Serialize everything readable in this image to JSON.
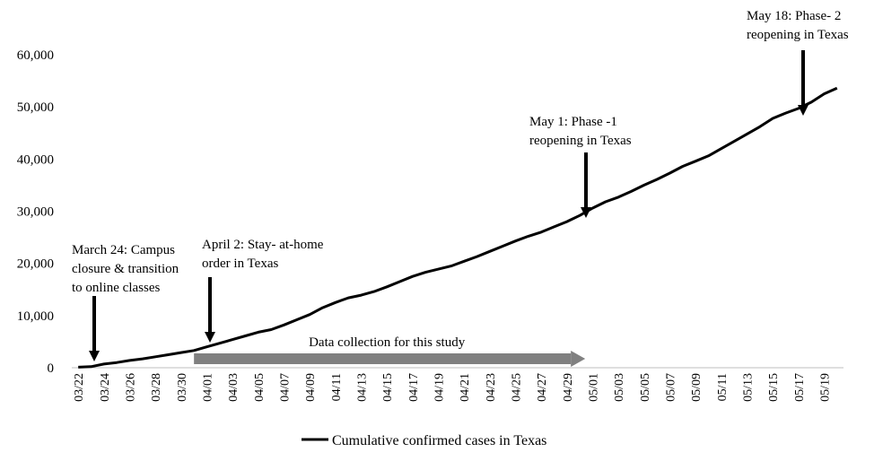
{
  "chart_data": {
    "type": "line",
    "title": "",
    "xlabel": "",
    "ylabel": "",
    "ylim": [
      0,
      60000
    ],
    "yticks": [
      "0",
      "10,000",
      "20,000",
      "30,000",
      "40,000",
      "50,000",
      "60,000"
    ],
    "ytick_values": [
      0,
      10000,
      20000,
      30000,
      40000,
      50000,
      60000
    ],
    "x": [
      "03/22",
      "03/23",
      "03/24",
      "03/25",
      "03/26",
      "03/27",
      "03/28",
      "03/29",
      "03/30",
      "03/31",
      "04/01",
      "04/02",
      "04/03",
      "04/04",
      "04/05",
      "04/06",
      "04/07",
      "04/08",
      "04/09",
      "04/10",
      "04/11",
      "04/12",
      "04/13",
      "04/14",
      "04/15",
      "04/16",
      "04/17",
      "04/18",
      "04/19",
      "04/20",
      "04/21",
      "04/22",
      "04/23",
      "04/24",
      "04/25",
      "04/26",
      "04/27",
      "04/28",
      "04/29",
      "04/30",
      "05/01",
      "05/02",
      "05/03",
      "05/04",
      "05/05",
      "05/06",
      "05/07",
      "05/08",
      "05/09",
      "05/10",
      "05/11",
      "05/12",
      "05/13",
      "05/14",
      "05/15",
      "05/16",
      "05/17",
      "05/18",
      "05/19",
      "05/20"
    ],
    "xtick_labels": [
      "03/22",
      "03/24",
      "03/26",
      "03/28",
      "03/30",
      "04/01",
      "04/03",
      "04/05",
      "04/07",
      "04/09",
      "04/11",
      "04/13",
      "04/15",
      "04/17",
      "04/19",
      "04/21",
      "04/23",
      "04/25",
      "04/27",
      "04/29",
      "05/01",
      "05/03",
      "05/05",
      "05/07",
      "05/09",
      "05/11",
      "05/13",
      "05/15",
      "05/17",
      "05/19"
    ],
    "series": [
      {
        "name": "Cumulative confirmed cases in Texas",
        "color": "#000000",
        "values": [
          100,
          200,
          700,
          1000,
          1400,
          1700,
          2100,
          2500,
          2900,
          3300,
          4000,
          4700,
          5400,
          6100,
          6800,
          7300,
          8200,
          9200,
          10200,
          11500,
          12500,
          13400,
          13900,
          14600,
          15500,
          16500,
          17500,
          18300,
          18900,
          19500,
          20400,
          21300,
          22300,
          23300,
          24300,
          25200,
          26000,
          27000,
          28000,
          29200,
          30600,
          31800,
          32700,
          33800,
          35000,
          36100,
          37300,
          38600,
          39600,
          40600,
          42000,
          43400,
          44800,
          46200,
          47800,
          48800,
          49700,
          50900,
          52500,
          53600
        ]
      }
    ],
    "data_collection": {
      "label": "Data collection for this study",
      "start": "03/31",
      "end": "04/30",
      "color": "#808080"
    },
    "annotations": [
      {
        "x": "03/24",
        "lines": [
          "March 24: Campus",
          "closure & transition",
          "to online classes"
        ]
      },
      {
        "x": "04/02",
        "lines": [
          "April 2: Stay- at-home",
          "order in Texas"
        ]
      },
      {
        "x": "05/01",
        "lines": [
          "May 1: Phase -1",
          "reopening in Texas"
        ]
      },
      {
        "x": "05/18",
        "lines": [
          "May 18: Phase- 2",
          "reopening in Texas"
        ]
      }
    ],
    "legend_position": "bottom",
    "grid": false
  }
}
